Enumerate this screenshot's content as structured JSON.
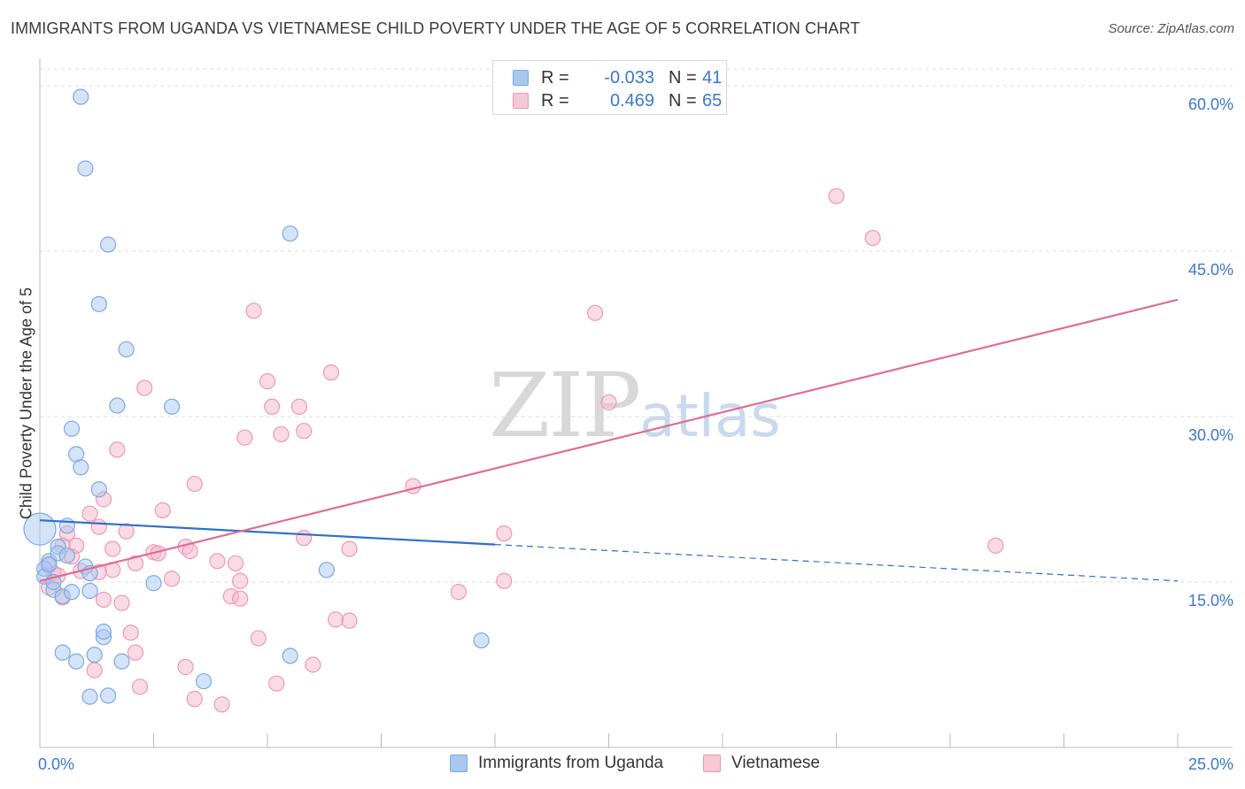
{
  "header": {
    "title": "IMMIGRANTS FROM UGANDA VS VIETNAMESE CHILD POVERTY UNDER THE AGE OF 5 CORRELATION CHART",
    "source": "Source: ZipAtlas.com"
  },
  "watermark": {
    "zip": "ZIP",
    "atlas": "atlas"
  },
  "legend": {
    "rows": [
      {
        "r_label": "R =",
        "r_value": "-0.033",
        "n_label": "N =",
        "n_value": "41",
        "color": "#a9c8ef"
      },
      {
        "r_label": "R =",
        "r_value": "0.469",
        "n_label": "N =",
        "n_value": "65",
        "color": "#f5b8cb"
      }
    ]
  },
  "bottom_legend": {
    "uganda": "Immigrants from Uganda",
    "vietnamese": "Vietnamese"
  },
  "colors": {
    "blue_fill": "#a9c8ef",
    "blue_stroke": "#7aaae3",
    "blue_line": "#2f6fcc",
    "pink_fill": "#f5b8cb",
    "pink_stroke": "#ee98b3",
    "pink_line": "#e06c93",
    "tick_text": "#3b78d0",
    "grid": "#dcdcdc"
  },
  "chart_data": {
    "type": "scatter",
    "title": "IMMIGRANTS FROM UGANDA VS VIETNAMESE CHILD POVERTY UNDER THE AGE OF 5 CORRELATION CHART",
    "xlabel": "",
    "ylabel": "Child Poverty Under the Age of 5",
    "xlim": [
      0,
      25
    ],
    "ylim": [
      0,
      62
    ],
    "x_tick_labels": [
      "0.0%",
      "25.0%"
    ],
    "y_ticks": [
      15,
      30,
      45,
      60
    ],
    "y_tick_labels": [
      "15.0%",
      "30.0%",
      "45.0%",
      "60.0%"
    ],
    "grid": true,
    "series": [
      {
        "name": "Immigrants from Uganda",
        "r": -0.033,
        "n": 41,
        "trend": {
          "x0": 0,
          "y0": 20.6,
          "x1": 10,
          "y1": 18.4,
          "dashed_to_x": 25,
          "dashed_to_y": 15.1
        },
        "points": [
          {
            "x": 0.0,
            "y": 19.8,
            "big": true
          },
          {
            "x": 0.9,
            "y": 59.0
          },
          {
            "x": 1.0,
            "y": 52.5
          },
          {
            "x": 1.5,
            "y": 45.6
          },
          {
            "x": 5.5,
            "y": 46.6
          },
          {
            "x": 1.3,
            "y": 40.2
          },
          {
            "x": 1.9,
            "y": 36.1
          },
          {
            "x": 1.7,
            "y": 31.0
          },
          {
            "x": 2.9,
            "y": 30.9
          },
          {
            "x": 0.7,
            "y": 28.9
          },
          {
            "x": 0.8,
            "y": 26.6
          },
          {
            "x": 0.9,
            "y": 25.4
          },
          {
            "x": 1.3,
            "y": 23.4
          },
          {
            "x": 0.6,
            "y": 20.1
          },
          {
            "x": 0.4,
            "y": 18.2
          },
          {
            "x": 0.2,
            "y": 16.9
          },
          {
            "x": 0.1,
            "y": 16.2
          },
          {
            "x": 0.1,
            "y": 15.5
          },
          {
            "x": 0.3,
            "y": 14.3
          },
          {
            "x": 0.5,
            "y": 13.7
          },
          {
            "x": 0.7,
            "y": 14.1
          },
          {
            "x": 0.4,
            "y": 17.6
          },
          {
            "x": 0.6,
            "y": 17.4
          },
          {
            "x": 1.0,
            "y": 16.4
          },
          {
            "x": 1.1,
            "y": 15.8
          },
          {
            "x": 1.1,
            "y": 14.2
          },
          {
            "x": 2.5,
            "y": 14.9
          },
          {
            "x": 6.3,
            "y": 16.1
          },
          {
            "x": 9.7,
            "y": 9.7
          },
          {
            "x": 0.5,
            "y": 8.6
          },
          {
            "x": 0.8,
            "y": 7.8
          },
          {
            "x": 1.2,
            "y": 8.4
          },
          {
            "x": 1.4,
            "y": 10.0
          },
          {
            "x": 1.4,
            "y": 10.5
          },
          {
            "x": 1.8,
            "y": 7.8
          },
          {
            "x": 5.5,
            "y": 8.3
          },
          {
            "x": 3.6,
            "y": 6.0
          },
          {
            "x": 1.1,
            "y": 4.6
          },
          {
            "x": 1.5,
            "y": 4.7
          },
          {
            "x": 0.3,
            "y": 15.0
          },
          {
            "x": 0.2,
            "y": 16.6
          }
        ]
      },
      {
        "name": "Vietnamese",
        "r": 0.469,
        "n": 65,
        "trend": {
          "x0": 0,
          "y0": 15.1,
          "x1": 25,
          "y1": 40.6
        },
        "points": [
          {
            "x": 17.5,
            "y": 50.0
          },
          {
            "x": 18.3,
            "y": 46.2
          },
          {
            "x": 12.2,
            "y": 39.4
          },
          {
            "x": 4.7,
            "y": 39.6
          },
          {
            "x": 6.4,
            "y": 34.0
          },
          {
            "x": 5.0,
            "y": 33.2
          },
          {
            "x": 2.3,
            "y": 32.6
          },
          {
            "x": 5.1,
            "y": 30.9
          },
          {
            "x": 5.7,
            "y": 30.9
          },
          {
            "x": 12.5,
            "y": 31.3
          },
          {
            "x": 5.8,
            "y": 28.7
          },
          {
            "x": 5.3,
            "y": 28.4
          },
          {
            "x": 4.5,
            "y": 28.1
          },
          {
            "x": 1.7,
            "y": 27.0
          },
          {
            "x": 3.4,
            "y": 23.9
          },
          {
            "x": 8.2,
            "y": 23.7
          },
          {
            "x": 1.4,
            "y": 22.5
          },
          {
            "x": 2.7,
            "y": 21.5
          },
          {
            "x": 1.1,
            "y": 21.2
          },
          {
            "x": 1.3,
            "y": 20.0
          },
          {
            "x": 1.9,
            "y": 19.6
          },
          {
            "x": 10.2,
            "y": 19.4
          },
          {
            "x": 0.6,
            "y": 19.4
          },
          {
            "x": 5.8,
            "y": 19.0
          },
          {
            "x": 0.8,
            "y": 18.3
          },
          {
            "x": 3.2,
            "y": 18.2
          },
          {
            "x": 1.6,
            "y": 18.0
          },
          {
            "x": 3.3,
            "y": 17.8
          },
          {
            "x": 2.5,
            "y": 17.7
          },
          {
            "x": 6.8,
            "y": 18.0
          },
          {
            "x": 21.0,
            "y": 18.3
          },
          {
            "x": 0.3,
            "y": 15.8
          },
          {
            "x": 0.9,
            "y": 16.0
          },
          {
            "x": 1.6,
            "y": 16.1
          },
          {
            "x": 2.1,
            "y": 16.7
          },
          {
            "x": 3.9,
            "y": 16.9
          },
          {
            "x": 4.3,
            "y": 16.7
          },
          {
            "x": 2.9,
            "y": 15.3
          },
          {
            "x": 4.4,
            "y": 15.1
          },
          {
            "x": 10.2,
            "y": 15.1
          },
          {
            "x": 9.2,
            "y": 14.1
          },
          {
            "x": 0.5,
            "y": 13.6
          },
          {
            "x": 1.4,
            "y": 13.4
          },
          {
            "x": 1.8,
            "y": 13.1
          },
          {
            "x": 4.2,
            "y": 13.7
          },
          {
            "x": 4.4,
            "y": 13.5
          },
          {
            "x": 6.5,
            "y": 11.6
          },
          {
            "x": 6.8,
            "y": 11.5
          },
          {
            "x": 2.0,
            "y": 10.4
          },
          {
            "x": 4.8,
            "y": 9.9
          },
          {
            "x": 2.1,
            "y": 8.6
          },
          {
            "x": 3.2,
            "y": 7.3
          },
          {
            "x": 1.2,
            "y": 7.0
          },
          {
            "x": 6.0,
            "y": 7.5
          },
          {
            "x": 2.2,
            "y": 5.5
          },
          {
            "x": 5.2,
            "y": 5.8
          },
          {
            "x": 3.4,
            "y": 4.4
          },
          {
            "x": 4.0,
            "y": 3.9
          },
          {
            "x": 0.2,
            "y": 16.5
          },
          {
            "x": 0.4,
            "y": 15.6
          },
          {
            "x": 0.5,
            "y": 18.3
          },
          {
            "x": 0.7,
            "y": 17.3
          },
          {
            "x": 0.2,
            "y": 14.5
          },
          {
            "x": 1.3,
            "y": 15.9
          },
          {
            "x": 2.6,
            "y": 17.6
          }
        ]
      }
    ]
  }
}
